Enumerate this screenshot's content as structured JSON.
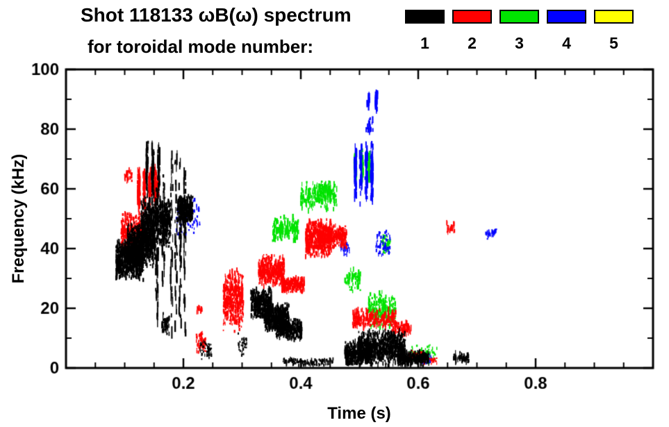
{
  "header": {
    "title": "Shot 118133 ωB(ω) spectrum",
    "subtitle": "for toroidal mode number:"
  },
  "legend": {
    "items": [
      {
        "label": "1",
        "color": "#000000"
      },
      {
        "label": "2",
        "color": "#ff0000"
      },
      {
        "label": "3",
        "color": "#00e300"
      },
      {
        "label": "4",
        "color": "#0000ff"
      },
      {
        "label": "5",
        "color": "#ffff00"
      }
    ]
  },
  "chart_data": {
    "type": "scatter",
    "title": "Shot 118133 ωB(ω) spectrum for toroidal mode number",
    "xlabel": "Time (s)",
    "ylabel": "Frequency (kHz)",
    "xlim": [
      0,
      1.0
    ],
    "ylim": [
      0,
      100
    ],
    "xticks": {
      "values": [
        0.2,
        0.4,
        0.6,
        0.8
      ],
      "labels": [
        "0.2",
        "0.4",
        "0.6",
        "0.8"
      ]
    },
    "yticks": {
      "values": [
        0,
        20,
        40,
        60,
        80,
        100
      ],
      "labels": [
        "0",
        "20",
        "40",
        "60",
        "80",
        "100"
      ]
    },
    "xminor": 0.05,
    "yminor": 10,
    "grid": false,
    "legend_position": "top",
    "units": {
      "t": "s",
      "f": "kHz"
    },
    "series": [
      {
        "name": "mode-1",
        "legend": "1",
        "color": "#000000",
        "clusters": [
          {
            "t": [
              0.085,
              0.132
            ],
            "f": [
              29,
              43
            ],
            "n": 750
          },
          {
            "t": [
              0.105,
              0.152
            ],
            "f": [
              34,
              49
            ],
            "n": 700
          },
          {
            "t": [
              0.128,
              0.178
            ],
            "f": [
              40,
              58
            ],
            "n": 650
          },
          {
            "t": [
              0.138,
              0.158
            ],
            "f": [
              57,
              77
            ],
            "n": 130,
            "cols": 3,
            "h": [
              4,
              14
            ]
          },
          {
            "t": [
              0.155,
              0.166
            ],
            "f": [
              12,
              66
            ],
            "n": 110,
            "cols": 2,
            "h": [
              4,
              16
            ]
          },
          {
            "t": [
              0.18,
              0.202
            ],
            "f": [
              8,
              77
            ],
            "n": 140,
            "cols": 4,
            "h": [
              4,
              18
            ]
          },
          {
            "t": [
              0.19,
              0.216
            ],
            "f": [
              48,
              58
            ],
            "n": 280
          },
          {
            "t": [
              0.163,
              0.176
            ],
            "f": [
              11,
              18
            ],
            "n": 50
          },
          {
            "t": [
              0.228,
              0.248
            ],
            "f": [
              2,
              10
            ],
            "n": 45,
            "h": [
              2,
              5
            ]
          },
          {
            "t": [
              0.293,
              0.308
            ],
            "f": [
              4,
              12
            ],
            "n": 40,
            "h": [
              2,
              5
            ]
          },
          {
            "t": [
              0.315,
              0.35
            ],
            "f": [
              16,
              27
            ],
            "n": 380
          },
          {
            "t": [
              0.338,
              0.38
            ],
            "f": [
              12,
              22
            ],
            "n": 480
          },
          {
            "t": [
              0.358,
              0.402
            ],
            "f": [
              9,
              17
            ],
            "n": 320
          },
          {
            "t": [
              0.37,
              0.455
            ],
            "f": [
              0.5,
              3.5
            ],
            "n": 130,
            "h": [
              2,
              5
            ]
          },
          {
            "t": [
              0.475,
              0.52
            ],
            "f": [
              0.5,
              9
            ],
            "n": 380
          },
          {
            "t": [
              0.498,
              0.578
            ],
            "f": [
              0.5,
              13
            ],
            "n": 750
          },
          {
            "t": [
              0.565,
              0.618
            ],
            "f": [
              0.5,
              6
            ],
            "n": 260
          },
          {
            "t": [
              0.66,
              0.686
            ],
            "f": [
              1.5,
              5.5
            ],
            "n": 60
          }
        ]
      },
      {
        "name": "mode-2",
        "legend": "2",
        "color": "#ff0000",
        "clusters": [
          {
            "t": [
              0.094,
              0.132
            ],
            "f": [
              39,
              53
            ],
            "n": 260
          },
          {
            "t": [
              0.124,
              0.152
            ],
            "f": [
              52,
              68
            ],
            "n": 230,
            "cols": 4,
            "h": [
              3,
              12
            ]
          },
          {
            "t": [
              0.1,
              0.113
            ],
            "f": [
              62,
              67
            ],
            "n": 30
          },
          {
            "t": [
              0.147,
              0.16
            ],
            "f": [
              57,
              66
            ],
            "n": 70
          },
          {
            "t": [
              0.222,
              0.238
            ],
            "f": [
              4,
              13
            ],
            "n": 60,
            "h": [
              2,
              6
            ]
          },
          {
            "t": [
              0.222,
              0.232
            ],
            "f": [
              18,
              21
            ],
            "n": 14
          },
          {
            "t": [
              0.268,
              0.302
            ],
            "f": [
              12,
              33
            ],
            "n": 420
          },
          {
            "t": [
              0.328,
              0.372
            ],
            "f": [
              27,
              38
            ],
            "n": 380
          },
          {
            "t": [
              0.368,
              0.406
            ],
            "f": [
              25,
              31
            ],
            "n": 210
          },
          {
            "t": [
              0.408,
              0.452
            ],
            "f": [
              37,
              50
            ],
            "n": 520
          },
          {
            "t": [
              0.445,
              0.478
            ],
            "f": [
              40,
              48
            ],
            "n": 180
          },
          {
            "t": [
              0.488,
              0.562
            ],
            "f": [
              13,
              20
            ],
            "n": 260
          },
          {
            "t": [
              0.555,
              0.588
            ],
            "f": [
              10,
              16
            ],
            "n": 90
          },
          {
            "t": [
              0.585,
              0.608
            ],
            "f": [
              2,
              6
            ],
            "n": 45,
            "h": [
              2,
              5
            ]
          },
          {
            "t": [
              0.61,
              0.632
            ],
            "f": [
              1,
              4
            ],
            "n": 30,
            "h": [
              2,
              5
            ]
          },
          {
            "t": [
              0.648,
              0.662
            ],
            "f": [
              45,
              49
            ],
            "n": 22
          }
        ]
      },
      {
        "name": "mode-3",
        "legend": "3",
        "color": "#00e300",
        "clusters": [
          {
            "t": [
              0.352,
              0.396
            ],
            "f": [
              42,
              51
            ],
            "n": 160,
            "h": [
              3,
              9
            ]
          },
          {
            "t": [
              0.4,
              0.462
            ],
            "f": [
              52,
              63
            ],
            "n": 190,
            "h": [
              3,
              9
            ]
          },
          {
            "t": [
              0.43,
              0.45
            ],
            "f": [
              57,
              63
            ],
            "n": 60
          },
          {
            "t": [
              0.493,
              0.516
            ],
            "f": [
              62,
              73
            ],
            "n": 130,
            "cols": 3,
            "h": [
              4,
              12
            ]
          },
          {
            "t": [
              0.475,
              0.502
            ],
            "f": [
              25,
              34
            ],
            "n": 70
          },
          {
            "t": [
              0.515,
              0.562
            ],
            "f": [
              13,
              26
            ],
            "n": 260
          },
          {
            "t": [
              0.538,
              0.553
            ],
            "f": [
              38,
              45
            ],
            "n": 35
          },
          {
            "t": [
              0.585,
              0.632
            ],
            "f": [
              1,
              8
            ],
            "n": 70,
            "h": [
              2,
              5
            ]
          }
        ]
      },
      {
        "name": "mode-4",
        "legend": "4",
        "color": "#0000ff",
        "clusters": [
          {
            "t": [
              0.188,
              0.228
            ],
            "f": [
              44,
              58
            ],
            "n": 70,
            "h": [
              2,
              6
            ]
          },
          {
            "t": [
              0.493,
              0.521
            ],
            "f": [
              54,
              76
            ],
            "n": 210,
            "cols": 4,
            "h": [
              4,
              14
            ]
          },
          {
            "t": [
              0.515,
              0.529
            ],
            "f": [
              86,
              94
            ],
            "n": 55,
            "cols": 2,
            "h": [
              4,
              12
            ]
          },
          {
            "t": [
              0.511,
              0.523
            ],
            "f": [
              78,
              84
            ],
            "n": 28
          },
          {
            "t": [
              0.528,
              0.553
            ],
            "f": [
              37,
              46
            ],
            "n": 55,
            "h": [
              2,
              6
            ]
          },
          {
            "t": [
              0.468,
              0.483
            ],
            "f": [
              37,
              43
            ],
            "n": 28
          },
          {
            "t": [
              0.715,
              0.733
            ],
            "f": [
              43,
              47
            ],
            "n": 26
          },
          {
            "t": [
              0.598,
              0.622
            ],
            "f": [
              1,
              5
            ],
            "n": 30,
            "h": [
              2,
              5
            ]
          }
        ]
      },
      {
        "name": "mode-5",
        "legend": "5",
        "color": "#ffff00",
        "clusters": []
      }
    ]
  }
}
